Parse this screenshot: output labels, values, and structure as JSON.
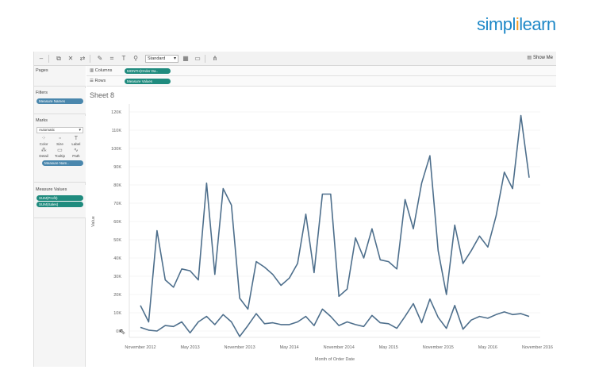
{
  "logo": {
    "brand_main": "simpl",
    "brand_i": "i",
    "brand_rest": "learn"
  },
  "toolbar": {
    "mark_type_select": "Standard",
    "show_me_label": "Show Me"
  },
  "panels": {
    "pages_title": "Pages",
    "filters_title": "Filters",
    "filter_pill": "Measure Names",
    "marks_title": "Marks",
    "marks_type": "Automatic",
    "marks_buttons": [
      "Color",
      "Size",
      "Label",
      "Detail",
      "Tooltip",
      "Path"
    ],
    "marks_pill": "Measure Nam..",
    "measure_values_title": "Measure Values",
    "measure_pills": [
      "SUM(Profit)",
      "SUM(Sales)"
    ]
  },
  "shelves": {
    "columns_label": "Columns",
    "columns_pill": "MONTH(Order Da..",
    "rows_label": "Rows",
    "rows_pill": "Measure Values"
  },
  "sheet": {
    "title": "Sheet 8"
  },
  "colors": {
    "line": "#4e6f8c",
    "pill_green": "#1f8b7e",
    "pill_blue": "#4a87ad",
    "axis_text": "#666666"
  },
  "chart_data": {
    "type": "line",
    "xlabel": "Month of Order Date",
    "ylabel": "Value",
    "ylim": [
      0,
      120000
    ],
    "yticks": [
      0,
      10000,
      20000,
      30000,
      40000,
      50000,
      60000,
      70000,
      80000,
      90000,
      100000,
      110000,
      120000
    ],
    "ytick_labels": [
      "0K",
      "10K",
      "20K",
      "30K",
      "40K",
      "50K",
      "60K",
      "70K",
      "80K",
      "90K",
      "100K",
      "110K",
      "120K"
    ],
    "x_start": "November 2012",
    "xtick_labels": [
      "November 2012",
      "May 2013",
      "November 2013",
      "May 2014",
      "November 2014",
      "May 2015",
      "November 2015",
      "May 2016",
      "November 2016"
    ],
    "xtick_index": [
      0,
      6,
      12,
      18,
      24,
      30,
      36,
      42,
      48
    ],
    "grid": true,
    "series": [
      {
        "values": [
          14000,
          5000,
          55000,
          28000,
          24000,
          34000,
          33000,
          28000,
          81000,
          31000,
          78000,
          69000,
          18000,
          12000,
          38000,
          35000,
          31000,
          25000,
          29000,
          37000,
          64000,
          32000,
          75000,
          75000,
          19000,
          23000,
          51000,
          40000,
          56000,
          39000,
          38000,
          34000,
          72000,
          56000,
          81000,
          96000,
          44000,
          20000,
          58000,
          37000,
          44000,
          52000,
          46000,
          63000,
          87000,
          78000,
          118000,
          84000
        ]
      },
      {
        "values": [
          2000,
          500,
          0,
          3000,
          2500,
          5000,
          -1000,
          5000,
          8000,
          3500,
          9000,
          5000,
          -3000,
          3000,
          9500,
          4000,
          4500,
          3500,
          3500,
          5000,
          8000,
          3000,
          12000,
          8000,
          3000,
          5000,
          3500,
          2500,
          8500,
          4500,
          4000,
          1500,
          8000,
          15000,
          4500,
          17500,
          7500,
          1500,
          14000,
          1000,
          6000,
          8000,
          7000,
          9000,
          10500,
          9000,
          9500,
          8000
        ]
      }
    ]
  }
}
